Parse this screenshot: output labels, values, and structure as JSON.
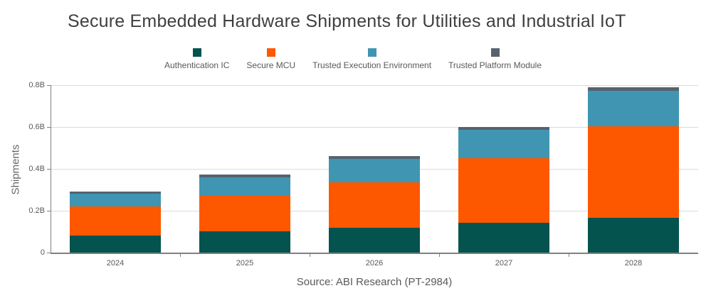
{
  "colors": {
    "title_text": "#3f3f3f",
    "axis_text": "#595959",
    "axis_line": "#808080",
    "gridline": "#dcdcdc",
    "background": "#ffffff"
  },
  "chart_data": {
    "type": "bar",
    "stacked": true,
    "title": "Secure Embedded Hardware Shipments for Utilities and Industrial IoT",
    "categories": [
      "2024",
      "2025",
      "2026",
      "2027",
      "2028"
    ],
    "series": [
      {
        "name": "Authentication IC",
        "color": "#05534e",
        "values": [
          0.082,
          0.101,
          0.117,
          0.142,
          0.165
        ]
      },
      {
        "name": "Secure MCU",
        "color": "#fd5800",
        "values": [
          0.138,
          0.174,
          0.218,
          0.308,
          0.437
        ]
      },
      {
        "name": "Trusted Execution Environment",
        "color": "#4095b3",
        "values": [
          0.06,
          0.084,
          0.113,
          0.135,
          0.172
        ]
      },
      {
        "name": "Trusted Platform Module",
        "color": "#57626e",
        "values": [
          0.012,
          0.013,
          0.012,
          0.014,
          0.016
        ]
      }
    ],
    "stack_totals": [
      0.292,
      0.372,
      0.46,
      0.599,
      0.79
    ],
    "xlabel": "",
    "ylabel": "Shipments",
    "ylim": [
      0,
      0.8
    ],
    "yticks": [
      {
        "value": 0,
        "label": "0"
      },
      {
        "value": 0.2,
        "label": "0.2B"
      },
      {
        "value": 0.4,
        "label": "0.4B"
      },
      {
        "value": 0.6,
        "label": "0.6B"
      },
      {
        "value": 0.8,
        "label": "0.8B"
      }
    ],
    "grid": true,
    "legend_position": "top",
    "source": "Source: ABI Research (PT-2984)"
  }
}
